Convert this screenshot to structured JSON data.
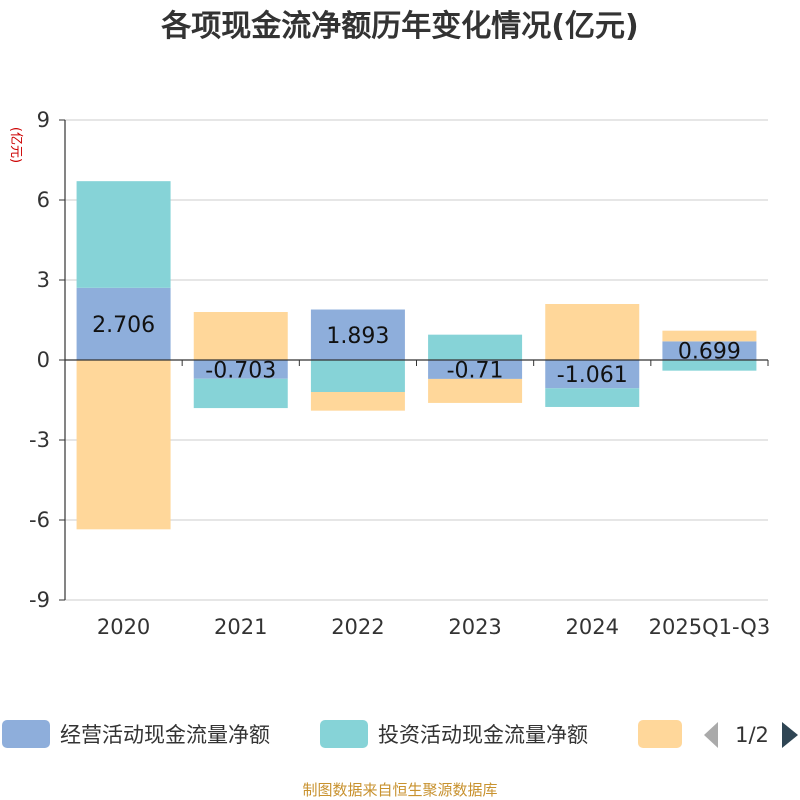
{
  "title": "各项现金流净额历年变化情况(亿元)",
  "unit_label": "(亿元)",
  "footer": "制图数据来自恒生聚源数据库",
  "legend_page": "1/2",
  "colors": {
    "operating": "#8eaedb",
    "investing": "#86d3d7",
    "financing": "#ffd79a"
  },
  "chart_data": {
    "type": "bar",
    "stacked": true,
    "categories": [
      "2020",
      "2021",
      "2022",
      "2023",
      "2024",
      "2025Q1-Q3"
    ],
    "ylim": [
      -9,
      9
    ],
    "yticks": [
      9,
      6,
      3,
      0,
      -3,
      -6,
      -9
    ],
    "series": [
      {
        "name": "经营活动现金流量净额",
        "key": "operating",
        "values": [
          2.706,
          -0.703,
          1.893,
          -0.71,
          -1.061,
          0.699
        ]
      },
      {
        "name": "投资活动现金流量净额",
        "key": "investing",
        "values": [
          4.0,
          -1.1,
          -1.2,
          0.95,
          -0.7,
          -0.4
        ]
      },
      {
        "name": "",
        "key": "financing",
        "values": [
          -6.35,
          1.8,
          -0.7,
          -0.9,
          2.1,
          0.4
        ]
      }
    ],
    "data_labels": [
      "2.706",
      "-0.703",
      "1.893",
      "-0.71",
      "-1.061",
      "0.699"
    ]
  }
}
